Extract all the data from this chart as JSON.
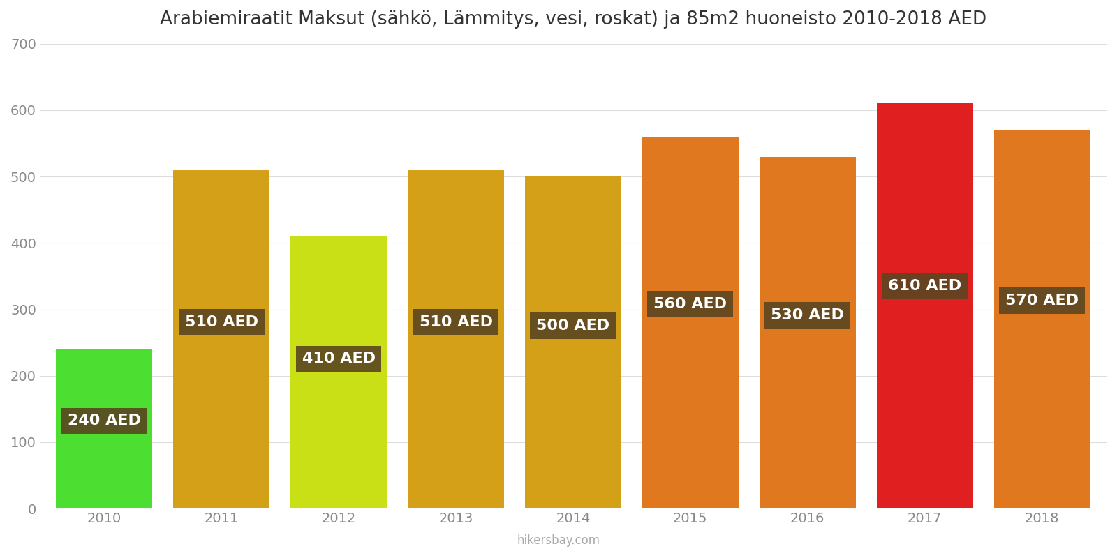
{
  "years": [
    2010,
    2011,
    2012,
    2013,
    2014,
    2015,
    2016,
    2017,
    2018
  ],
  "values": [
    240,
    510,
    410,
    510,
    500,
    560,
    530,
    610,
    570
  ],
  "bar_colors": [
    "#4cde30",
    "#d4a017",
    "#c8e015",
    "#d4a017",
    "#d4a017",
    "#e07820",
    "#e07820",
    "#e02020",
    "#e07820"
  ],
  "title": "Arabiemiraatit Maksut (sähkö, Lämmitys, vesi, roskat) ja 85m2 huoneisto 2010-2018 AED",
  "ylabel_max": 700,
  "yticks": [
    0,
    100,
    200,
    300,
    400,
    500,
    600,
    700
  ],
  "label_bg_color": "#5a4520",
  "label_text_color": "#ffffff",
  "watermark": "hikersbay.com",
  "label_fontsize": 16,
  "title_fontsize": 19,
  "bar_width": 0.82
}
